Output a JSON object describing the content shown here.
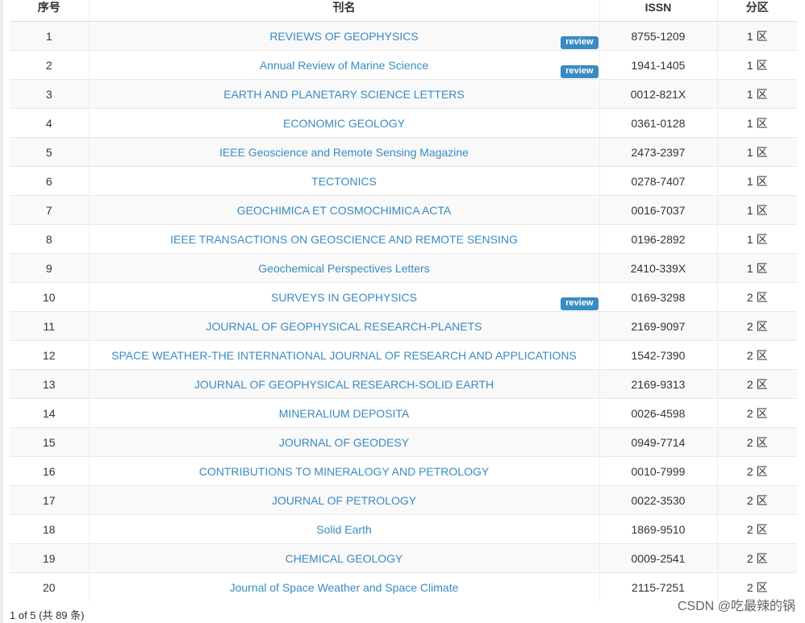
{
  "table": {
    "columns": [
      "序号",
      "刊名",
      "ISSN",
      "分区"
    ],
    "rows": [
      {
        "no": "1",
        "title": "REVIEWS OF GEOPHYSICS",
        "review": true,
        "issn": "8755-1209",
        "zone": "1 区"
      },
      {
        "no": "2",
        "title": "Annual Review of Marine Science",
        "review": true,
        "issn": "1941-1405",
        "zone": "1 区"
      },
      {
        "no": "3",
        "title": "EARTH AND PLANETARY SCIENCE LETTERS",
        "review": false,
        "issn": "0012-821X",
        "zone": "1 区"
      },
      {
        "no": "4",
        "title": "ECONOMIC GEOLOGY",
        "review": false,
        "issn": "0361-0128",
        "zone": "1 区"
      },
      {
        "no": "5",
        "title": "IEEE Geoscience and Remote Sensing Magazine",
        "review": false,
        "issn": "2473-2397",
        "zone": "1 区"
      },
      {
        "no": "6",
        "title": "TECTONICS",
        "review": false,
        "issn": "0278-7407",
        "zone": "1 区"
      },
      {
        "no": "7",
        "title": "GEOCHIMICA ET COSMOCHIMICA ACTA",
        "review": false,
        "issn": "0016-7037",
        "zone": "1 区"
      },
      {
        "no": "8",
        "title": "IEEE TRANSACTIONS ON GEOSCIENCE AND REMOTE SENSING",
        "review": false,
        "issn": "0196-2892",
        "zone": "1 区"
      },
      {
        "no": "9",
        "title": "Geochemical Perspectives Letters",
        "review": false,
        "issn": "2410-339X",
        "zone": "1 区"
      },
      {
        "no": "10",
        "title": "SURVEYS IN GEOPHYSICS",
        "review": true,
        "issn": "0169-3298",
        "zone": "2 区"
      },
      {
        "no": "11",
        "title": "JOURNAL OF GEOPHYSICAL RESEARCH-PLANETS",
        "review": false,
        "issn": "2169-9097",
        "zone": "2 区"
      },
      {
        "no": "12",
        "title": "SPACE WEATHER-THE INTERNATIONAL JOURNAL OF RESEARCH AND APPLICATIONS",
        "review": false,
        "issn": "1542-7390",
        "zone": "2 区"
      },
      {
        "no": "13",
        "title": "JOURNAL OF GEOPHYSICAL RESEARCH-SOLID EARTH",
        "review": false,
        "issn": "2169-9313",
        "zone": "2 区"
      },
      {
        "no": "14",
        "title": "MINERALIUM DEPOSITA",
        "review": false,
        "issn": "0026-4598",
        "zone": "2 区"
      },
      {
        "no": "15",
        "title": "JOURNAL OF GEODESY",
        "review": false,
        "issn": "0949-7714",
        "zone": "2 区"
      },
      {
        "no": "16",
        "title": "CONTRIBUTIONS TO MINERALOGY AND PETROLOGY",
        "review": false,
        "issn": "0010-7999",
        "zone": "2 区"
      },
      {
        "no": "17",
        "title": "JOURNAL OF PETROLOGY",
        "review": false,
        "issn": "0022-3530",
        "zone": "2 区"
      },
      {
        "no": "18",
        "title": "Solid Earth",
        "review": false,
        "issn": "1869-9510",
        "zone": "2 区"
      },
      {
        "no": "19",
        "title": "CHEMICAL GEOLOGY",
        "review": false,
        "issn": "0009-2541",
        "zone": "2 区"
      },
      {
        "no": "20",
        "title": "Journal of Space Weather and Space Climate",
        "review": false,
        "issn": "2115-7251",
        "zone": "2 区"
      }
    ],
    "review_label": "review"
  },
  "pagination": {
    "text": "1 of 5 (共 89 条)"
  },
  "watermark": {
    "text": "CSDN @吃最辣的锅"
  },
  "colors": {
    "link": "#3a8bc2",
    "badge": "#3a8bc2",
    "stripe": "#f9f9f9"
  }
}
